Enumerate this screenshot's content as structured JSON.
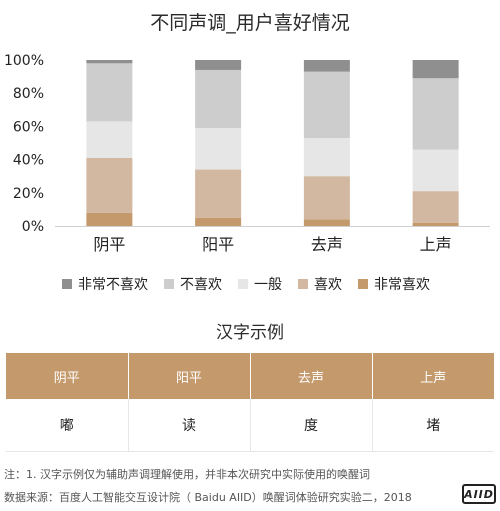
{
  "chart_data": {
    "type": "bar",
    "stacked": true,
    "percent": true,
    "title": "不同声调_用户喜好情况",
    "categories": [
      "阴平",
      "阳平",
      "去声",
      "上声"
    ],
    "series": [
      {
        "name": "非常喜欢",
        "color": "#c49a6c",
        "values": [
          8,
          5,
          4,
          2
        ]
      },
      {
        "name": "喜欢",
        "color": "#d2b8a0",
        "values": [
          33,
          29,
          26,
          19
        ]
      },
      {
        "name": "一般",
        "color": "#e6e6e6",
        "values": [
          22,
          25,
          23,
          25
        ]
      },
      {
        "name": "不喜欢",
        "color": "#cdcdcd",
        "values": [
          35,
          35,
          40,
          43
        ]
      },
      {
        "name": "非常不喜欢",
        "color": "#8f8f8f",
        "values": [
          2,
          6,
          7,
          11
        ]
      }
    ],
    "legend_order": [
      "非常不喜欢",
      "不喜欢",
      "一般",
      "喜欢",
      "非常喜欢"
    ],
    "yticks": [
      "0%",
      "20%",
      "40%",
      "60%",
      "80%",
      "100%"
    ],
    "ylim": [
      0,
      100
    ],
    "grid": false,
    "legend_position": "bottom"
  },
  "example": {
    "title": "汉字示例",
    "headers": [
      "阴平",
      "阳平",
      "去声",
      "上声"
    ],
    "cells": [
      "嘟",
      "读",
      "度",
      "堵"
    ]
  },
  "footnotes": {
    "note": "注：1. 汉字示例仅为辅助声调理解使用，并非本次研究中实际使用的唤醒词",
    "source": "数据来源：百度人工智能交互设计院（ Baidu AIID）唤醒词体验研究实验二，2018"
  },
  "logo": {
    "text": "AIID"
  }
}
